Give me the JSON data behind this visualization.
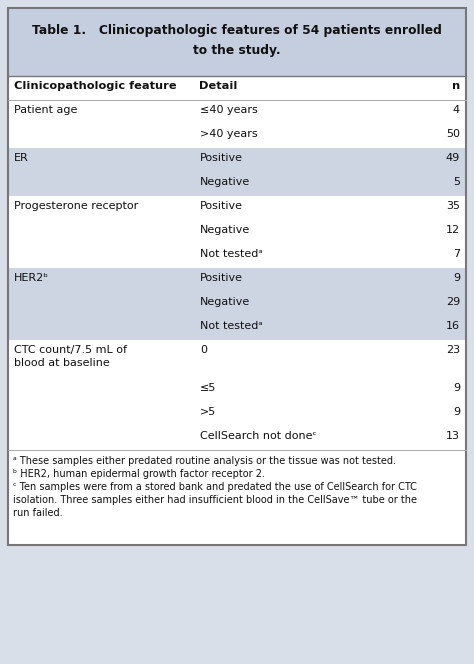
{
  "title_bold": "Table 1.",
  "title_rest_line1": "  Clinicopathologic features of 54 patients enrolled",
  "title_rest_line2": "to the study.",
  "header": [
    "Clinicopathologic feature",
    "Detail",
    "n"
  ],
  "rows": [
    {
      "feature": "Patient age",
      "detail": "≤40 years",
      "n": "4",
      "shade": false
    },
    {
      "feature": "",
      "detail": ">40 years",
      "n": "50",
      "shade": false
    },
    {
      "feature": "ER",
      "detail": "Positive",
      "n": "49",
      "shade": true
    },
    {
      "feature": "",
      "detail": "Negative",
      "n": "5",
      "shade": true
    },
    {
      "feature": "Progesterone receptor",
      "detail": "Positive",
      "n": "35",
      "shade": false
    },
    {
      "feature": "",
      "detail": "Negative",
      "n": "12",
      "shade": false
    },
    {
      "feature": "",
      "detail": "Not testedᵃ",
      "n": "7",
      "shade": false
    },
    {
      "feature": "HER2ᵇ",
      "detail": "Positive",
      "n": "9",
      "shade": true
    },
    {
      "feature": "",
      "detail": "Negative",
      "n": "29",
      "shade": true
    },
    {
      "feature": "",
      "detail": "Not testedᵃ",
      "n": "16",
      "shade": true
    },
    {
      "feature": "CTC count/7.5 mL of\nblood at baseline",
      "detail": "0",
      "n": "23",
      "shade": false
    },
    {
      "feature": "",
      "detail": "≤5",
      "n": "9",
      "shade": false
    },
    {
      "feature": "",
      "detail": ">5",
      "n": "9",
      "shade": false
    },
    {
      "feature": "",
      "detail": "CellSearch not doneᶜ",
      "n": "13",
      "shade": false
    }
  ],
  "footnote1": "ᵃ These samples either predated routine analysis or the tissue was not tested.",
  "footnote2": "ᵇ HER2, human epidermal growth factor receptor 2.",
  "footnote3a": "ᶜ Ten samples were from a stored bank and predated the use of CellSearch for CTC",
  "footnote3b": "isolation. Three samples either had insufficient blood in the CellSave™ tube or the",
  "footnote3c": "run failed.",
  "title_bg": "#c5cede",
  "shade_bg": "#cdd4e2",
  "white_bg": "#ffffff",
  "outer_bg": "#d8dfe8",
  "border_color": "#777777",
  "text_color": "#111111"
}
